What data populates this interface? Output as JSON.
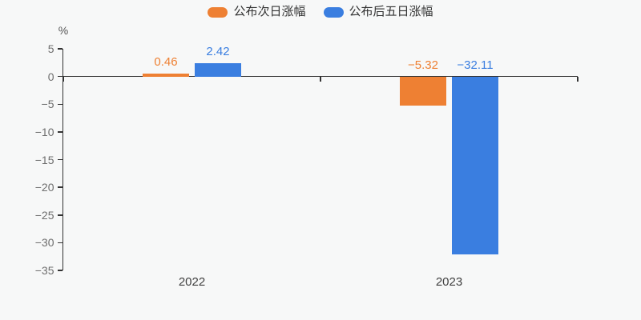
{
  "chart_data": {
    "type": "bar",
    "categories": [
      "2022",
      "2023"
    ],
    "series": [
      {
        "name": "公布次日涨幅",
        "color": "#ee8033",
        "values": [
          0.46,
          -5.32
        ]
      },
      {
        "name": "公布后五日涨幅",
        "color": "#3a7ee0",
        "values": [
          2.42,
          -32.11
        ]
      }
    ],
    "ylabel": "%",
    "ylim": [
      -35,
      5
    ],
    "ytick_step": 5,
    "grid": false,
    "legend_position": "top",
    "value_labels": true
  },
  "colors": {
    "background": "#f7f8f8",
    "axis": "#333333",
    "y_tick_label": "#6e6e6e",
    "category_label": "#404040",
    "legend_text": "#333333"
  }
}
